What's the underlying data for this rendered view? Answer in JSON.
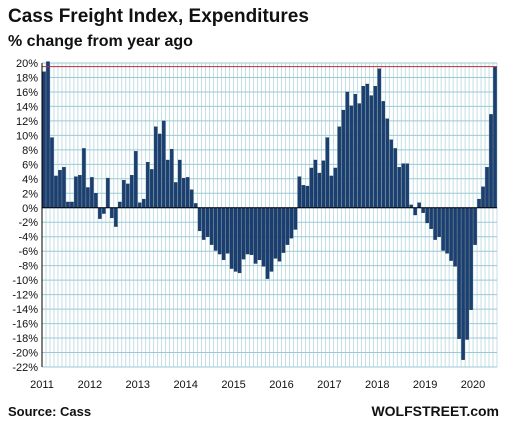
{
  "title": "Cass Freight Index, Expenditures",
  "subtitle": "% change from year ago",
  "source": "Source: Cass",
  "brand": "WOLFSTREET.com",
  "colors": {
    "bar": "#1b3f73",
    "bar_edge": "#0d2340",
    "grid": "#9cc9d4",
    "ref_line": "#b03040",
    "axis": "#000000"
  },
  "chart_data": {
    "type": "bar",
    "title": "Cass Freight Index, Expenditures",
    "ylabel": "% change from year ago",
    "ylim": [
      -22,
      20
    ],
    "yticks": [
      20,
      18,
      16,
      14,
      12,
      10,
      8,
      6,
      4,
      2,
      0,
      -2,
      -4,
      -6,
      -8,
      -10,
      -12,
      -14,
      -16,
      -18,
      -20,
      -22
    ],
    "ytick_labels": [
      "20%",
      "18%",
      "16%",
      "14%",
      "12%",
      "10%",
      "8%",
      "6%",
      "4%",
      "2%",
      "0%",
      "-2%",
      "-4%",
      "-6%",
      "-8%",
      "-10%",
      "-12%",
      "-14%",
      "-16%",
      "-18%",
      "-20%",
      "-22%"
    ],
    "xtick_labels": [
      "2011",
      "2012",
      "2013",
      "2014",
      "2015",
      "2016",
      "2017",
      "2018",
      "2019",
      "2020"
    ],
    "grid": true,
    "reference_line": 19.5,
    "start": "2011-01",
    "frequency": "monthly",
    "values": [
      18.8,
      20.2,
      9.7,
      4.4,
      5.2,
      5.6,
      0.8,
      0.8,
      4.3,
      4.5,
      8.2,
      2.8,
      4.2,
      2.0,
      -1.5,
      -0.8,
      4.1,
      -1.4,
      -2.6,
      0.8,
      3.8,
      3.3,
      4.5,
      7.8,
      0.7,
      1.2,
      6.3,
      5.3,
      11.2,
      10.2,
      12.0,
      6.6,
      8.1,
      3.5,
      6.6,
      4.1,
      4.2,
      2.5,
      0.6,
      -3.2,
      -4.4,
      -4.0,
      -5.1,
      -5.9,
      -6.4,
      -7.2,
      -6.3,
      -8.4,
      -8.8,
      -9.0,
      -7.1,
      -6.4,
      -6.5,
      -7.7,
      -7.2,
      -8.1,
      -9.8,
      -8.8,
      -7.0,
      -7.4,
      -6.2,
      -5.1,
      -4.2,
      -3.0,
      4.3,
      3.1,
      3.0,
      5.5,
      6.6,
      4.8,
      6.5,
      9.7,
      4.4,
      5.5,
      11.2,
      13.5,
      16.0,
      14.1,
      15.7,
      14.4,
      16.8,
      17.1,
      15.5,
      16.8,
      19.2,
      14.7,
      12.3,
      9.4,
      8.2,
      5.6,
      6.1,
      6.1,
      0.4,
      -1.0,
      0.7,
      -0.7,
      -2.1,
      -2.9,
      -4.4,
      -4.0,
      -5.9,
      -6.3,
      -7.3,
      -8.1,
      -18.1,
      -21.0,
      -18.2,
      -14.1,
      -5.1,
      1.2,
      2.9,
      5.6,
      12.9,
      19.5
    ]
  }
}
